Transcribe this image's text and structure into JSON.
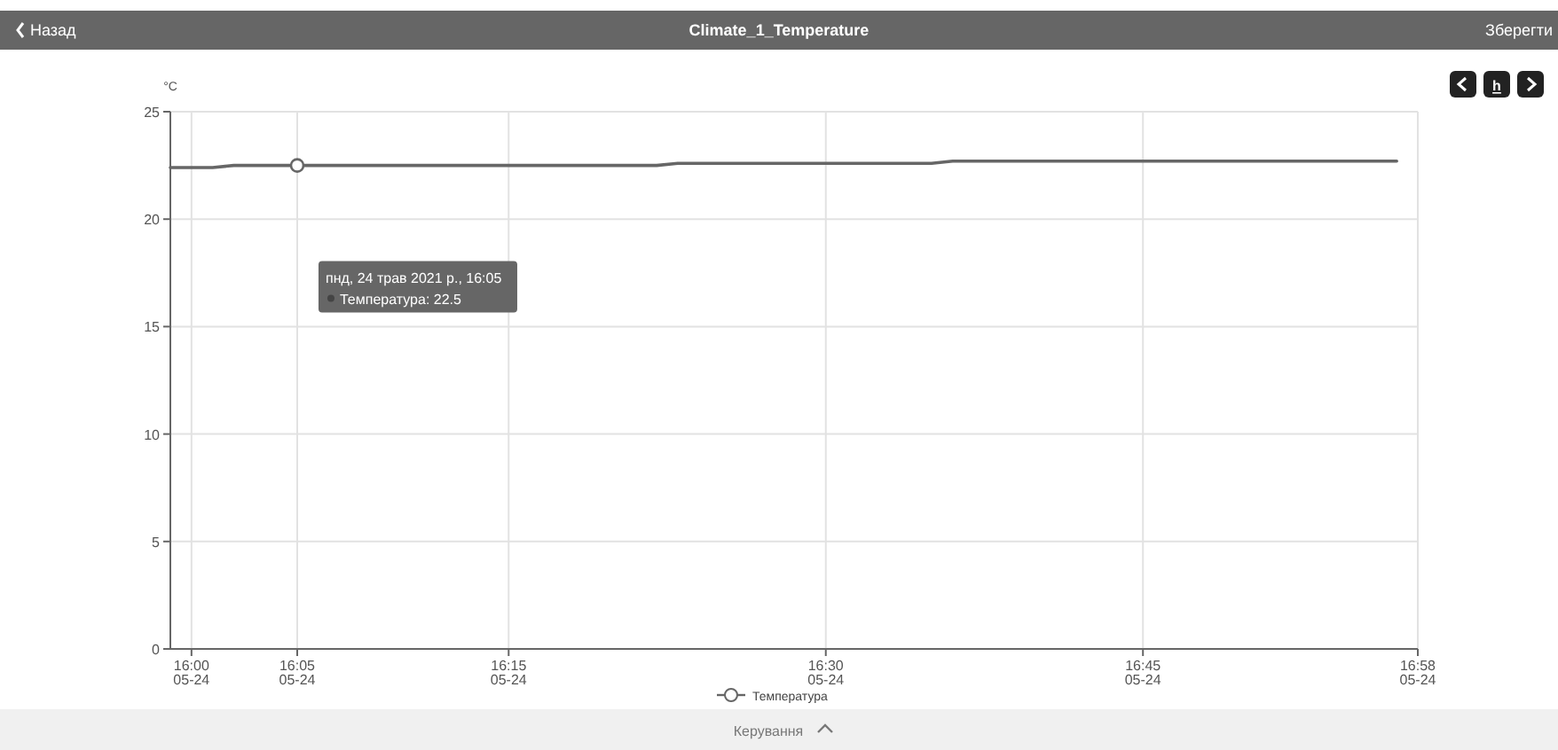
{
  "chart_data": {
    "type": "line",
    "title": "Climate_1_Temperature",
    "ylabel": "°C",
    "annotations": [
      "Назад",
      "Зберегти",
      "Керування",
      "h",
      "пнд, 24 трав 2021 р., 16:05",
      "Температура: 22.5"
    ],
    "xlim": [
      "2021-05-24T15:59",
      "2021-05-24T16:58"
    ],
    "xticks": [
      {
        "value": "2021-05-24T16:00",
        "label": "16:00 05-24"
      },
      {
        "value": "2021-05-24T16:05",
        "label": "16:05 05-24"
      },
      {
        "value": "2021-05-24T16:15",
        "label": "16:15 05-24"
      },
      {
        "value": "2021-05-24T16:30",
        "label": "16:30 05-24"
      },
      {
        "value": "2021-05-24T16:45",
        "label": "16:45 05-24"
      },
      {
        "value": "2021-05-24T16:58",
        "label": "16:58 05-24"
      }
    ],
    "ylim": [
      0,
      25
    ],
    "yticks": [
      0,
      5,
      10,
      15,
      20,
      25
    ],
    "grid": true,
    "legend": "bottom",
    "line_style": "solid",
    "series": [
      {
        "name": "Температура",
        "color": "#666666",
        "marker": "none",
        "x": [
          "2021-05-24T15:59",
          "2021-05-24T16:01",
          "2021-05-24T16:02",
          "2021-05-24T16:22",
          "2021-05-24T16:23",
          "2021-05-24T16:35",
          "2021-05-24T16:36",
          "2021-05-24T16:57"
        ],
        "values": [
          22.4,
          22.4,
          22.5,
          22.5,
          22.6,
          22.6,
          22.7,
          22.7
        ]
      },
      {
        "type": "scatter",
        "color": "#666666",
        "marker": "circle",
        "x": [
          "2021-05-24T16:05"
        ],
        "values": [
          22.5
        ]
      }
    ]
  }
}
